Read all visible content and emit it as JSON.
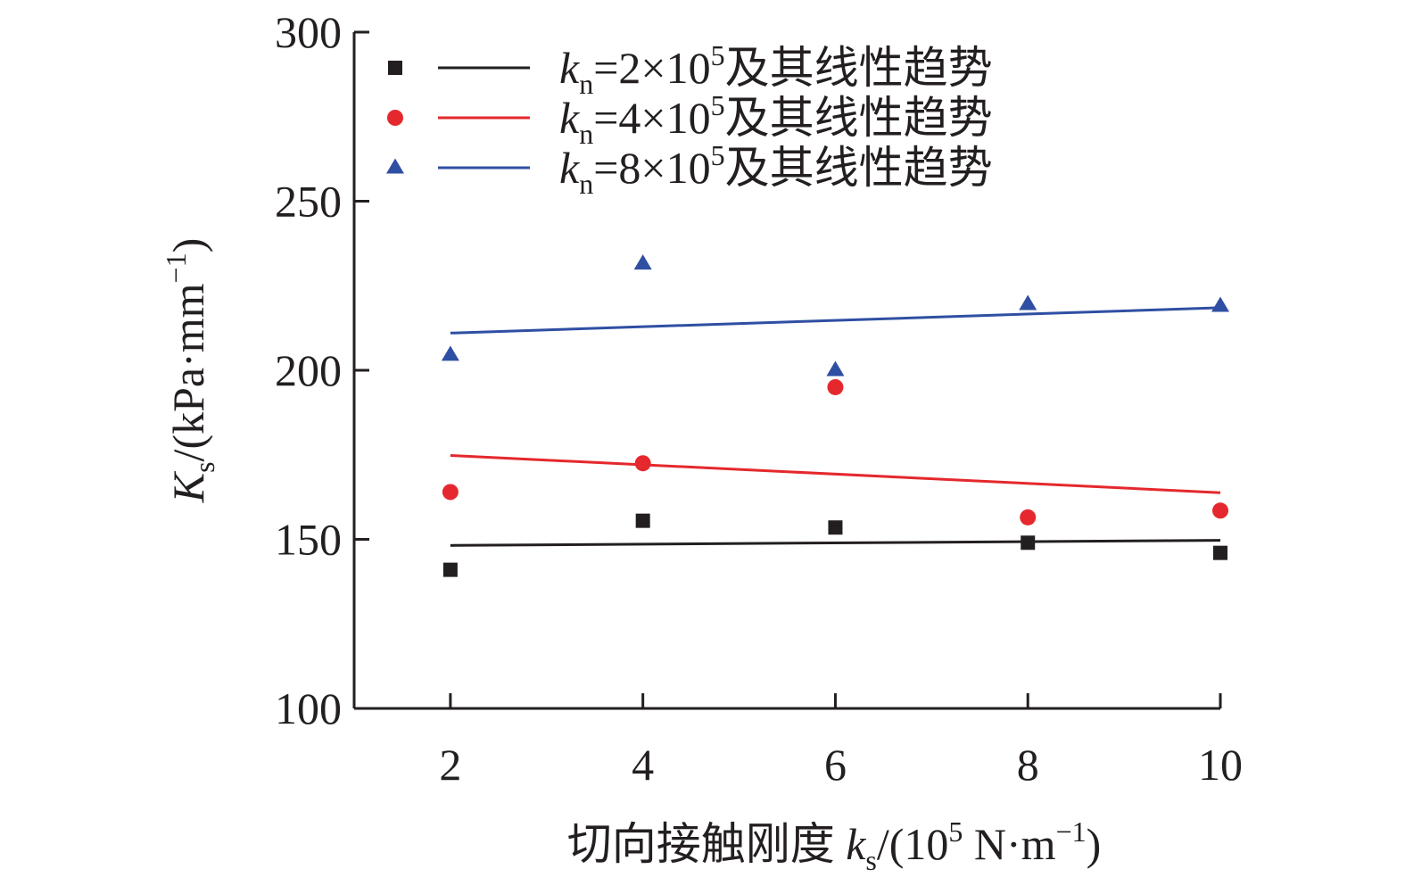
{
  "chart_data": {
    "type": "scatter",
    "title": "",
    "xlabel": {
      "prefix": "切向接触刚度 ",
      "var": "k",
      "sub": "s",
      "unit_open": "/(10",
      "unit_exp": "5",
      "unit_mid": " N·m",
      "unit_exp2": "−1",
      "unit_close": ")"
    },
    "ylabel": {
      "var": "K",
      "sub": "s",
      "unit_open": "/(kPa·mm",
      "unit_exp": "−1",
      "unit_close": ")"
    },
    "xlim": [
      1.0,
      10.0
    ],
    "ylim": [
      100,
      300
    ],
    "x_ticks": [
      2,
      4,
      6,
      8,
      10
    ],
    "y_ticks": [
      100,
      150,
      200,
      250,
      300
    ],
    "x": [
      2,
      4,
      6,
      8,
      10
    ],
    "grid": false,
    "legend_position": "top-left",
    "series": [
      {
        "legend": {
          "var": "k",
          "sub": "n",
          "eq": "=2×10",
          "exp": "5",
          "suffix": "及其线性趋势"
        },
        "marker": "square",
        "color": "#231f20",
        "values": [
          141,
          155.5,
          153.5,
          149,
          146
        ],
        "trend": [
          148.2,
          149.7
        ]
      },
      {
        "legend": {
          "var": "k",
          "sub": "n",
          "eq": "=4×10",
          "exp": "5",
          "suffix": "及其线性趋势"
        },
        "marker": "circle",
        "color": "#e5282d",
        "values": [
          164,
          172.5,
          195,
          156.5,
          158.5
        ],
        "trend": [
          174.8,
          163.8
        ]
      },
      {
        "legend": {
          "var": "k",
          "sub": "n",
          "eq": "=8×10",
          "exp": "5",
          "suffix": "及其线性趋势"
        },
        "marker": "triangle",
        "color": "#2f4fa3",
        "values": [
          204.5,
          231.5,
          200,
          219.5,
          219
        ],
        "trend": [
          211,
          218.5
        ]
      }
    ]
  }
}
